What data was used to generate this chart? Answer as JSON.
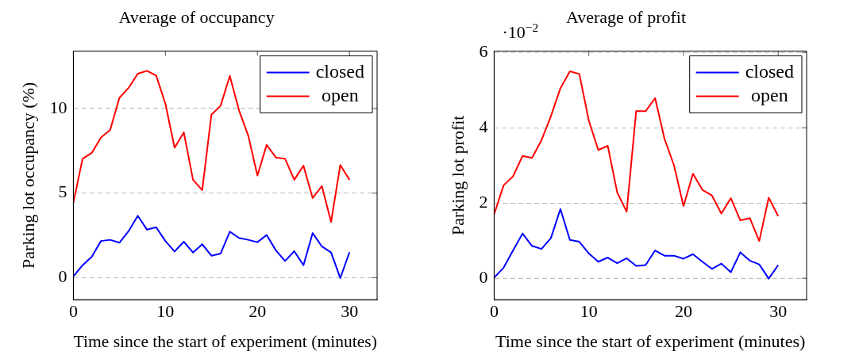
{
  "chart_data": [
    {
      "type": "line",
      "title": "Average of occupancy",
      "xlabel": "Time since the start of experiment (minutes)",
      "ylabel": "Parking lot occupancy (%)",
      "xlim": [
        0,
        33
      ],
      "xticks": [
        0,
        10,
        20,
        30
      ],
      "ylim": [
        -1.3,
        13.4
      ],
      "yticks": [
        0,
        5,
        10
      ],
      "grid": "y",
      "legend": "top right",
      "marker": "none",
      "line_style": "solid",
      "x": [
        0,
        1,
        2,
        3,
        4,
        5,
        6,
        7,
        8,
        9,
        10,
        11,
        12,
        13,
        14,
        15,
        16,
        17,
        18,
        19,
        20,
        21,
        22,
        23,
        24,
        25,
        26,
        27,
        28,
        29,
        30
      ],
      "series": [
        {
          "name": "closed",
          "color": "#0000ff",
          "values": [
            0.08,
            0.74,
            1.24,
            2.17,
            2.24,
            2.07,
            2.75,
            3.66,
            2.84,
            2.98,
            2.17,
            1.55,
            2.13,
            1.49,
            1.98,
            1.3,
            1.43,
            2.72,
            2.35,
            2.24,
            2.1,
            2.53,
            1.62,
            0.99,
            1.57,
            0.74,
            2.64,
            1.85,
            1.49,
            -0.02,
            1.51
          ]
        },
        {
          "name": "open",
          "color": "#ff0000",
          "values": [
            4.43,
            7.03,
            7.38,
            8.29,
            8.73,
            10.63,
            11.22,
            12.06,
            12.23,
            11.95,
            10.28,
            7.68,
            8.59,
            5.79,
            5.18,
            9.64,
            10.17,
            11.93,
            9.89,
            8.4,
            6.04,
            7.85,
            7.11,
            7.03,
            5.79,
            6.62,
            4.71,
            5.42,
            3.3,
            6.66,
            5.79
          ]
        }
      ]
    },
    {
      "type": "line",
      "title": "Average of profit",
      "xlabel": "Time since the start of experiment (minutes)",
      "ylabel": "Parking lot profit",
      "xlim": [
        0,
        33
      ],
      "xticks": [
        0,
        10,
        20,
        30
      ],
      "ylim": [
        -0.57,
        6.04
      ],
      "yticks": [
        0,
        2,
        4,
        6
      ],
      "grid": "y",
      "legend": "top right",
      "marker": "none",
      "line_style": "solid",
      "annotations": [
        "·10$^{−2}$"
      ],
      "x": [
        0,
        1,
        2,
        3,
        4,
        5,
        6,
        7,
        8,
        9,
        10,
        11,
        12,
        13,
        14,
        15,
        16,
        17,
        18,
        19,
        20,
        21,
        22,
        23,
        24,
        25,
        26,
        27,
        28,
        29,
        30
      ],
      "series": [
        {
          "name": "closed",
          "color": "#0000ff",
          "values": [
            0.02,
            0.28,
            0.74,
            1.19,
            0.86,
            0.78,
            1.07,
            1.84,
            1.02,
            0.97,
            0.66,
            0.44,
            0.55,
            0.4,
            0.53,
            0.33,
            0.35,
            0.74,
            0.6,
            0.6,
            0.52,
            0.64,
            0.44,
            0.25,
            0.39,
            0.16,
            0.69,
            0.47,
            0.37,
            -0.01,
            0.35
          ]
        },
        {
          "name": "open",
          "color": "#ff0000",
          "values": [
            1.7,
            2.47,
            2.71,
            3.25,
            3.2,
            3.67,
            4.31,
            5.05,
            5.5,
            5.43,
            4.19,
            3.41,
            3.52,
            2.28,
            1.77,
            4.44,
            4.44,
            4.79,
            3.7,
            3.0,
            1.92,
            2.78,
            2.35,
            2.2,
            1.72,
            2.13,
            1.54,
            1.6,
            0.99,
            2.14,
            1.65
          ]
        }
      ]
    }
  ]
}
